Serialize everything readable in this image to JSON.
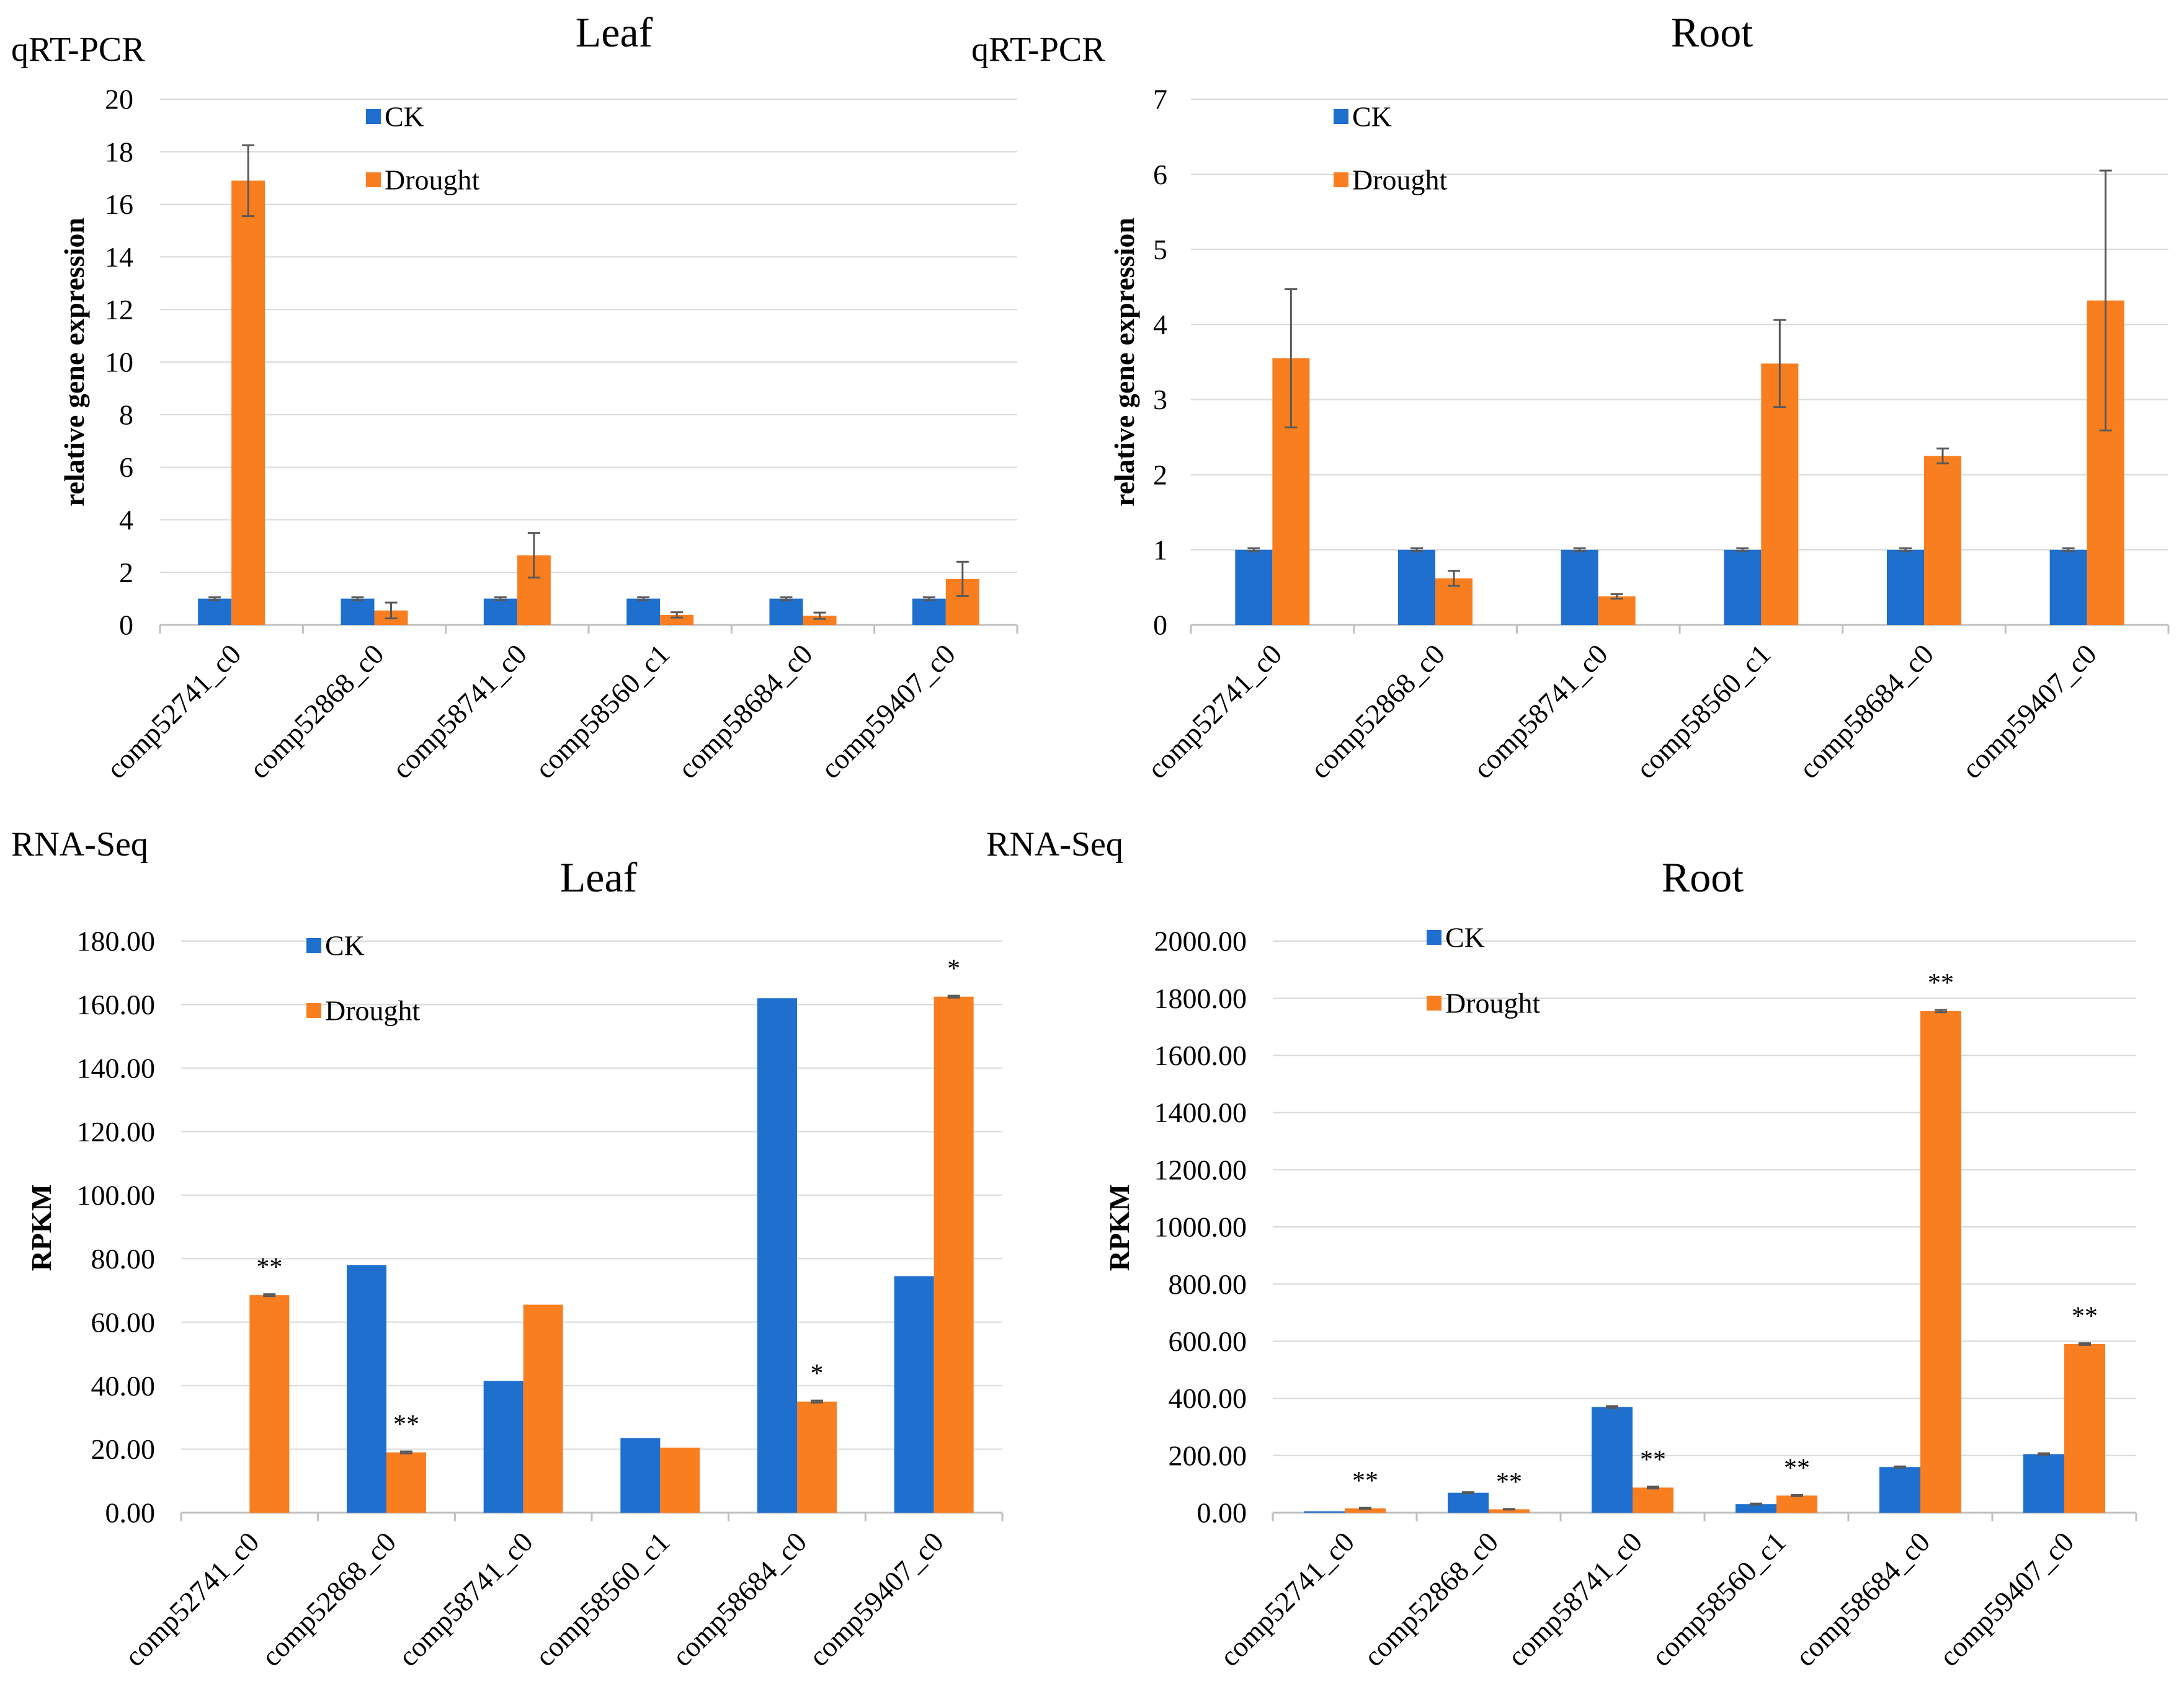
{
  "colors": {
    "ck": "#1f6fce",
    "drought": "#f97e20",
    "grid": "#d9d9d9",
    "axis": "#bfbfbf",
    "errorbar": "#595959"
  },
  "chart_data": [
    {
      "type": "bar",
      "section_label": "qRT-PCR",
      "title": "Leaf",
      "ylabel": "relative gene expression",
      "xlabel": "",
      "ylim": [
        0,
        20
      ],
      "yticks": [
        "0",
        "2",
        "4",
        "6",
        "8",
        "10",
        "12",
        "14",
        "16",
        "18",
        "20"
      ],
      "categories": [
        "comp52741_c0",
        "comp52868_c0",
        "comp58741_c0",
        "comp58560_c1",
        "comp58684_c0",
        "comp59407_c0"
      ],
      "series": [
        {
          "name": "CK",
          "values": [
            1,
            1,
            1,
            1,
            1,
            1
          ],
          "errors": [
            0.05,
            0.05,
            0.05,
            0.05,
            0.05,
            0.05
          ]
        },
        {
          "name": "Drought",
          "values": [
            16.9,
            0.55,
            2.65,
            0.38,
            0.35,
            1.75
          ],
          "errors": [
            1.35,
            0.3,
            0.85,
            0.1,
            0.12,
            0.65
          ]
        }
      ],
      "annotations": [
        "",
        "",
        "",
        "",
        "",
        ""
      ],
      "legend": "top-left"
    },
    {
      "type": "bar",
      "section_label": "qRT-PCR",
      "title": "Root",
      "ylabel": "relative gene expression",
      "xlabel": "",
      "ylim": [
        0,
        7
      ],
      "yticks": [
        "0",
        "1",
        "2",
        "3",
        "4",
        "5",
        "6",
        "7"
      ],
      "categories": [
        "comp52741_c0",
        "comp52868_c0",
        "comp58741_c0",
        "comp58560_c1",
        "comp58684_c0",
        "comp59407_c0"
      ],
      "series": [
        {
          "name": "CK",
          "values": [
            1,
            1,
            1,
            1,
            1,
            1
          ],
          "errors": [
            0.02,
            0.02,
            0.02,
            0.02,
            0.02,
            0.02
          ]
        },
        {
          "name": "Drought",
          "values": [
            3.55,
            0.62,
            0.38,
            3.48,
            2.25,
            4.32
          ],
          "errors": [
            0.92,
            0.1,
            0.03,
            0.58,
            0.1,
            1.73
          ]
        }
      ],
      "annotations": [
        "",
        "",
        "",
        "",
        "",
        ""
      ],
      "legend": "top-left"
    },
    {
      "type": "bar",
      "section_label": "RNA-Seq",
      "title": "Leaf",
      "ylabel": "RPKM",
      "xlabel": "",
      "ylim": [
        0,
        180
      ],
      "yticks": [
        "0.00",
        "20.00",
        "40.00",
        "60.00",
        "80.00",
        "100.00",
        "120.00",
        "140.00",
        "160.00",
        "180.00"
      ],
      "categories": [
        "comp52741_c0",
        "comp52868_c0",
        "comp58741_c0",
        "comp58560_c1",
        "comp58684_c0",
        "comp59407_c0"
      ],
      "series": [
        {
          "name": "CK",
          "values": [
            0,
            78,
            41.5,
            23.5,
            162,
            74.5
          ],
          "errors": [
            0,
            0,
            0,
            0,
            0,
            0
          ]
        },
        {
          "name": "Drought",
          "values": [
            68.5,
            19,
            65.5,
            20.5,
            35,
            162.5
          ],
          "errors": [
            0.3,
            0.3,
            0,
            0,
            0.3,
            0.3
          ]
        }
      ],
      "annotations": [
        "**",
        "**",
        "",
        "",
        "*",
        "*"
      ],
      "legend": "top-left"
    },
    {
      "type": "bar",
      "section_label": "RNA-Seq",
      "title": "Root",
      "ylabel": "RPKM",
      "xlabel": "",
      "ylim": [
        0,
        2000
      ],
      "yticks": [
        "0.00",
        "200.00",
        "400.00",
        "600.00",
        "800.00",
        "1000.00",
        "1200.00",
        "1400.00",
        "1600.00",
        "1800.00",
        "2000.00"
      ],
      "categories": [
        "comp52741_c0",
        "comp52868_c0",
        "comp58741_c0",
        "comp58560_c1",
        "comp58684_c0",
        "comp59407_c0"
      ],
      "series": [
        {
          "name": "CK",
          "values": [
            5,
            70,
            370,
            30,
            160,
            205
          ],
          "errors": [
            0,
            2,
            3,
            2,
            2,
            3
          ]
        },
        {
          "name": "Drought",
          "values": [
            15,
            12,
            88,
            60,
            1755,
            590
          ],
          "errors": [
            2,
            1,
            3,
            2,
            4,
            3
          ]
        }
      ],
      "annotations": [
        "**",
        "**",
        "**",
        "**",
        "**",
        "**"
      ],
      "legend": "top-left"
    }
  ]
}
